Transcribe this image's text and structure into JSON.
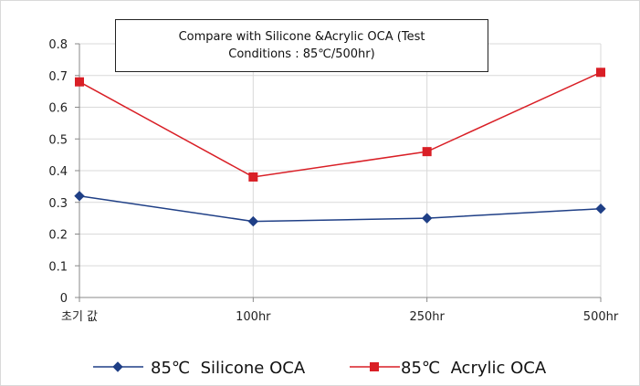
{
  "chart_data": {
    "type": "line",
    "title": "Compare with Silicone &Acrylic OCA (Test Conditions : 85℃/500hr)",
    "xlabel": "",
    "ylabel": "",
    "categories": [
      "초기 값",
      "100hr",
      "250hr",
      "500hr"
    ],
    "ylim": [
      0,
      0.8
    ],
    "yticks": [
      "0",
      "0.1",
      "0.2",
      "0.3",
      "0.4",
      "0.5",
      "0.6",
      "0.7",
      "0.8"
    ],
    "grid": true,
    "legend_position": "bottom",
    "series": [
      {
        "name": "85℃  Silicone OCA",
        "values": [
          0.32,
          0.24,
          0.25,
          0.28
        ],
        "color": "#1f3f86",
        "marker": "diamond"
      },
      {
        "name": "85℃  Acrylic OCA",
        "values": [
          0.68,
          0.38,
          0.46,
          0.71
        ],
        "color": "#d91f26",
        "marker": "square"
      }
    ]
  }
}
